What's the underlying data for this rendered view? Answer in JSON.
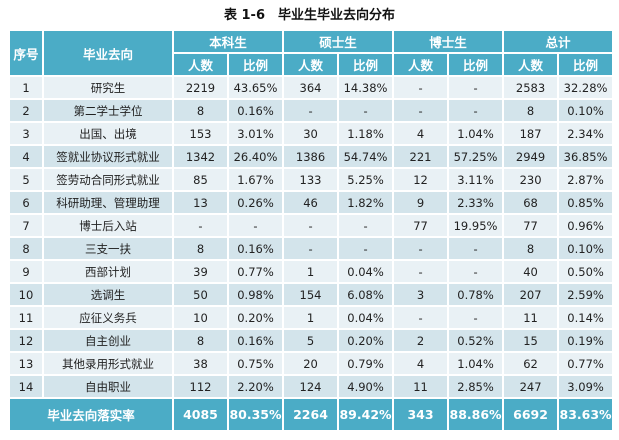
{
  "title": "表 1-6　毕业生毕业去向分布",
  "colors": {
    "header": "#4bacc6",
    "row_light": "#e9f1f5",
    "row_dark": "#d3e4eb"
  },
  "headers": {
    "index": "序号",
    "destination": "毕业去向",
    "groups": [
      "本科生",
      "硕士生",
      "博士生",
      "总计"
    ],
    "sub": [
      "人数",
      "比例"
    ]
  },
  "rows": [
    [
      "1",
      "研究生",
      "2219",
      "43.65%",
      "364",
      "14.38%",
      "-",
      "-",
      "2583",
      "32.28%"
    ],
    [
      "2",
      "第二学士学位",
      "8",
      "0.16%",
      "-",
      "-",
      "-",
      "-",
      "8",
      "0.10%"
    ],
    [
      "3",
      "出国、出境",
      "153",
      "3.01%",
      "30",
      "1.18%",
      "4",
      "1.04%",
      "187",
      "2.34%"
    ],
    [
      "4",
      "签就业协议形式就业",
      "1342",
      "26.40%",
      "1386",
      "54.74%",
      "221",
      "57.25%",
      "2949",
      "36.85%"
    ],
    [
      "5",
      "签劳动合同形式就业",
      "85",
      "1.67%",
      "133",
      "5.25%",
      "12",
      "3.11%",
      "230",
      "2.87%"
    ],
    [
      "6",
      "科研助理、管理助理",
      "13",
      "0.26%",
      "46",
      "1.82%",
      "9",
      "2.33%",
      "68",
      "0.85%"
    ],
    [
      "7",
      "博士后入站",
      "-",
      "-",
      "-",
      "-",
      "77",
      "19.95%",
      "77",
      "0.96%"
    ],
    [
      "8",
      "三支一扶",
      "8",
      "0.16%",
      "-",
      "-",
      "-",
      "-",
      "8",
      "0.10%"
    ],
    [
      "9",
      "西部计划",
      "39",
      "0.77%",
      "1",
      "0.04%",
      "-",
      "-",
      "40",
      "0.50%"
    ],
    [
      "10",
      "选调生",
      "50",
      "0.98%",
      "154",
      "6.08%",
      "3",
      "0.78%",
      "207",
      "2.59%"
    ],
    [
      "11",
      "应征义务兵",
      "10",
      "0.20%",
      "1",
      "0.04%",
      "-",
      "-",
      "11",
      "0.14%"
    ],
    [
      "12",
      "自主创业",
      "8",
      "0.16%",
      "5",
      "0.20%",
      "2",
      "0.52%",
      "15",
      "0.19%"
    ],
    [
      "13",
      "其他录用形式就业",
      "38",
      "0.75%",
      "20",
      "0.79%",
      "4",
      "1.04%",
      "62",
      "0.77%"
    ],
    [
      "14",
      "自由职业",
      "112",
      "2.20%",
      "124",
      "4.90%",
      "11",
      "2.85%",
      "247",
      "3.09%"
    ]
  ],
  "footer": [
    "毕业去向落实率",
    "4085",
    "80.35%",
    "2264",
    "89.42%",
    "343",
    "88.86%",
    "6692",
    "83.63%"
  ]
}
